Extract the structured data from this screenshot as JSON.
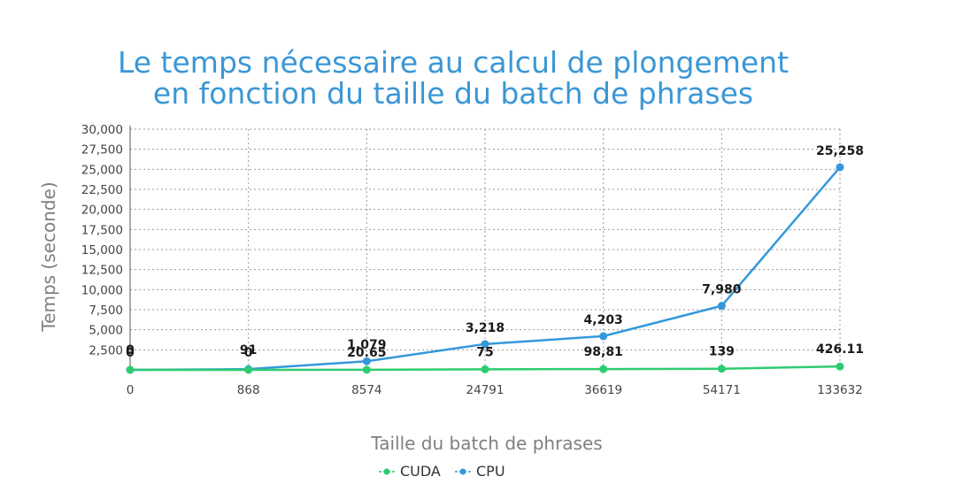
{
  "chart_data": {
    "type": "line",
    "title": "Le temps nécessaire au calcul de plongement en fonction du taille du batch de phrases",
    "title_lines": [
      "Le temps nécessaire au calcul de plongement",
      "en fonction du taille du batch de phrases"
    ],
    "xlabel": "Taille du batch de phrases",
    "ylabel": "Temps (seconde)",
    "categories": [
      "0",
      "868",
      "8574",
      "24791",
      "36619",
      "54171",
      "133632"
    ],
    "ylim": [
      0,
      30000
    ],
    "yticks": [
      "2,500",
      "5,000",
      "7,500",
      "10,000",
      "12,500",
      "15,000",
      "17,500",
      "20,000",
      "22,500",
      "25,000",
      "27,500",
      "30,000"
    ],
    "ytick_values": [
      2500,
      5000,
      7500,
      10000,
      12500,
      15000,
      17500,
      20000,
      22500,
      25000,
      27500,
      30000
    ],
    "grid": true,
    "legend_position": "bottom",
    "series": [
      {
        "name": "CUDA",
        "color": "#2ecc71",
        "values": [
          0,
          0,
          20.65,
          75,
          98.81,
          139,
          426.11
        ],
        "labels": [
          "0",
          "0",
          "20.65",
          "75",
          "98,81",
          "139",
          "426.11"
        ]
      },
      {
        "name": "CPU",
        "color": "#3498db",
        "values": [
          0,
          91,
          1079,
          3218,
          4203,
          7980,
          25258
        ],
        "labels": [
          "0",
          "91",
          "1,079",
          "3,218",
          "4,203",
          "7,980",
          "25,258"
        ]
      }
    ]
  }
}
